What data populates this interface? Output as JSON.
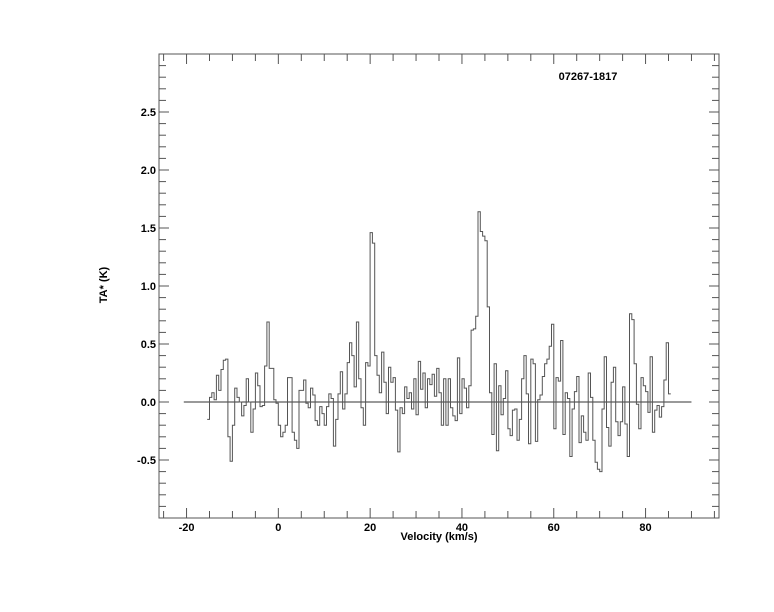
{
  "chart_data": {
    "type": "line",
    "style": "histogram",
    "title": "07267-1817",
    "xlabel": "Velocity (km/s)",
    "ylabel": "TA* (K)",
    "xlim": [
      -26,
      96
    ],
    "ylim": [
      -1.0,
      3.0
    ],
    "xticks": [
      -20,
      0,
      20,
      40,
      60,
      80
    ],
    "xtick_labels": [
      "-20",
      "0",
      "20",
      "40",
      "60",
      "80"
    ],
    "xminor_step": 5,
    "yticks": [
      -0.5,
      0.0,
      0.5,
      1.0,
      1.5,
      2.0,
      2.5
    ],
    "ytick_labels": [
      "-0.5",
      "0.0",
      "0.5",
      "1.0",
      "1.5",
      "2.0",
      "2.5"
    ],
    "yminor_step": 0.1,
    "grid": false,
    "baseline": {
      "y": 0,
      "x_range": [
        -20.6,
        90
      ]
    },
    "colors": {
      "spectrum": "#555555",
      "axes": "#555555",
      "baseline": "#333333"
    },
    "x": [
      -15.5,
      -15,
      -14.5,
      -14,
      -13.5,
      -13,
      -12.5,
      -12,
      -11.5,
      -11,
      -10.5,
      -10,
      -9.5,
      -9,
      -8.5,
      -8,
      -7.5,
      -7,
      -6.5,
      -6,
      -5.5,
      -5,
      -4.5,
      -4,
      -3.5,
      -3,
      -2.5,
      -2,
      -1.5,
      -1,
      -0.5,
      0,
      0.5,
      1,
      1.5,
      2,
      2.5,
      3,
      3.5,
      4,
      4.5,
      5,
      5.5,
      6,
      6.5,
      7,
      7.5,
      8,
      8.5,
      9,
      9.5,
      10,
      10.5,
      11,
      11.5,
      12,
      12.5,
      13,
      13.5,
      14,
      14.5,
      15,
      15.5,
      16,
      16.5,
      17,
      17.5,
      18,
      18.5,
      19,
      19.5,
      20,
      20.5,
      21,
      21.5,
      22,
      22.5,
      23,
      23.5,
      24,
      24.5,
      25,
      25.5,
      26,
      26.5,
      27,
      27.5,
      28,
      28.5,
      29,
      29.5,
      30,
      30.5,
      31,
      31.5,
      32,
      32.5,
      33,
      33.5,
      34,
      34.5,
      35,
      35.5,
      36,
      36.5,
      37,
      37.5,
      38,
      38.5,
      39,
      39.5,
      40,
      40.5,
      41,
      41.5,
      42,
      42.5,
      43,
      43.5,
      44,
      44.5,
      45,
      45.5,
      46,
      46.5,
      47,
      47.5,
      48,
      48.5,
      49,
      49.5,
      50,
      50.5,
      51,
      51.5,
      52,
      52.5,
      53,
      53.5,
      54,
      54.5,
      55,
      55.5,
      56,
      56.5,
      57,
      57.5,
      58,
      58.5,
      59,
      59.5,
      60,
      60.5,
      61,
      61.5,
      62,
      62.5,
      63,
      63.5,
      64,
      64.5,
      65,
      65.5,
      66,
      66.5,
      67,
      67.5,
      68,
      68.5,
      69,
      69.5,
      70,
      70.5,
      71,
      71.5,
      72,
      72.5,
      73,
      73.5,
      74,
      74.5,
      75,
      75.5,
      76,
      76.5,
      77,
      77.5,
      78,
      78.5,
      79,
      79.5,
      80,
      80.5,
      81,
      81.5,
      82,
      82.5,
      83,
      83.5,
      84,
      84.5,
      85
    ],
    "channel_width": 0.5,
    "y": [
      -0.15,
      0.04,
      0.08,
      0.02,
      0.23,
      0.1,
      0.28,
      0.36,
      0.37,
      -0.3,
      -0.51,
      -0.2,
      0.12,
      0.04,
      0.0,
      -0.12,
      -0.03,
      0.2,
      0.0,
      -0.26,
      -0.06,
      0.25,
      0.14,
      -0.04,
      -0.03,
      0.31,
      0.69,
      0.29,
      0.29,
      0.02,
      -0.01,
      -0.2,
      -0.3,
      -0.26,
      -0.2,
      0.21,
      0.21,
      -0.26,
      -0.33,
      -0.4,
      0.1,
      0.1,
      0.19,
      -0.01,
      -0.05,
      0.12,
      0.06,
      -0.16,
      -0.2,
      -0.04,
      -0.1,
      -0.2,
      -0.04,
      0.07,
      0.03,
      -0.38,
      -0.15,
      0.07,
      0.26,
      -0.06,
      0.07,
      0.34,
      0.51,
      0.4,
      0.13,
      0.69,
      0.2,
      -0.05,
      -0.2,
      0.34,
      0.31,
      1.46,
      1.37,
      0.4,
      0.23,
      0.08,
      0.43,
      0.17,
      -0.1,
      0.3,
      0.17,
      0.21,
      -0.07,
      -0.43,
      -0.05,
      -0.1,
      0.13,
      0.03,
      0.08,
      -0.06,
      0.2,
      -0.11,
      0.35,
      0.11,
      0.25,
      -0.05,
      0.2,
      0.15,
      0.24,
      0.05,
      0.29,
      0.08,
      -0.2,
      0.2,
      -0.2,
      0.2,
      -0.05,
      -0.12,
      -0.16,
      0.38,
      -0.1,
      0.2,
      0.12,
      -0.05,
      0.14,
      0.62,
      0.63,
      0.74,
      1.64,
      1.47,
      1.43,
      1.39,
      0.82,
      0.08,
      -0.28,
      0.33,
      -0.42,
      0.14,
      -0.11,
      0.03,
      0.27,
      -0.23,
      -0.29,
      -0.07,
      -0.06,
      -0.33,
      -0.15,
      0.2,
      0.4,
      0.07,
      -0.36,
      0.37,
      0.33,
      -0.34,
      0.02,
      0.06,
      0.22,
      0.33,
      0.37,
      0.48,
      0.67,
      -0.23,
      0.21,
      0.18,
      0.53,
      -0.28,
      0.08,
      0.03,
      -0.47,
      -0.06,
      0.09,
      0.22,
      -0.35,
      -0.12,
      -0.26,
      -0.33,
      0.25,
      0.04,
      -0.33,
      -0.52,
      -0.58,
      -0.6,
      -0.06,
      0.39,
      -0.22,
      -0.38,
      0.17,
      0.3,
      -0.17,
      -0.29,
      -0.17,
      0.13,
      -0.19,
      -0.47,
      0.76,
      0.71,
      0.33,
      -0.02,
      -0.23,
      0.21,
      0.14,
      0.09,
      -0.09,
      0.39,
      -0.26,
      -0.07,
      -0.03,
      -0.13,
      -0.04,
      0.19,
      0.51,
      0.07
    ]
  }
}
